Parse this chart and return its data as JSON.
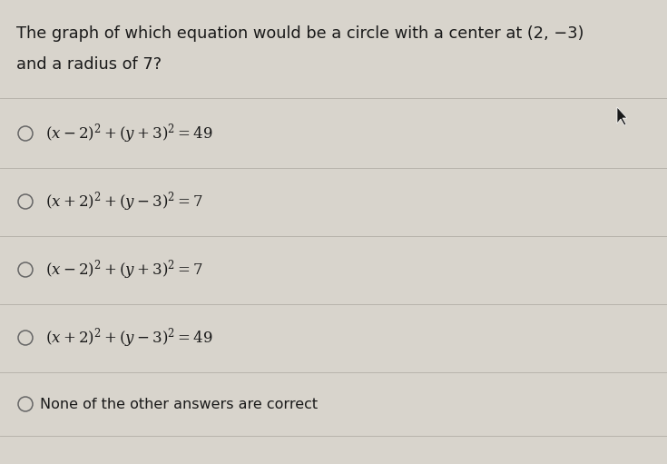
{
  "background_color": "#d8d4cc",
  "title_line1": "The graph of which equation would be a circle with a center at (2, −3)",
  "title_line2": "and a radius of 7?",
  "option_math": [
    "$(x-2)^2+(y+3)^2=49$",
    "$(x+2)^2+(y-3)^2=7$",
    "$(x-2)^2+(y+3)^2=7$",
    "$(x+2)^2+(y-3)^2=49$",
    "None of the other answers are correct"
  ],
  "text_color": "#1a1a1a",
  "line_color": "#b8b4ac",
  "circle_color": "#666666",
  "title_fontsize": 12.8,
  "option_fontsize": 12.0,
  "last_option_fontsize": 11.5,
  "fig_width": 7.35,
  "fig_height": 5.11,
  "dpi": 100
}
